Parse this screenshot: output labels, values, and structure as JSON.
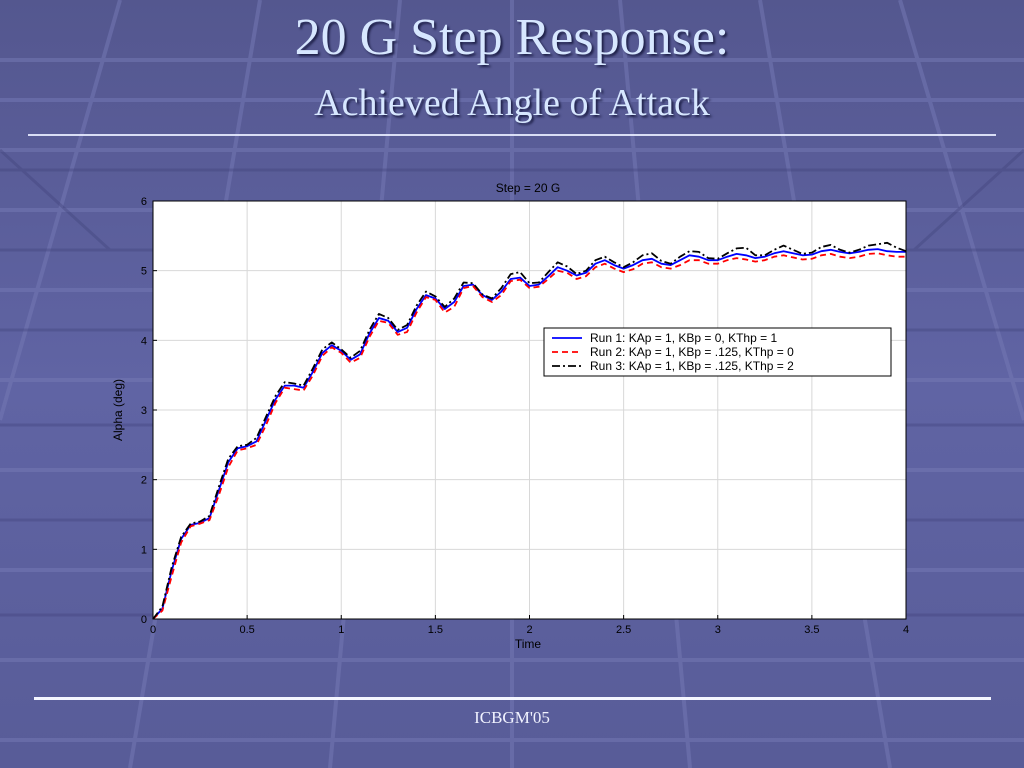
{
  "slide": {
    "title": "20 G Step Response:",
    "subtitle": "Achieved Angle of Attack",
    "footer": "ICBGM'05"
  },
  "chart_data": {
    "type": "line",
    "title": "Step = 20 G",
    "xlabel": "Time",
    "ylabel": "Alpha (deg)",
    "xlim": [
      0,
      4
    ],
    "ylim": [
      0,
      6
    ],
    "xticks": [
      "0",
      "0.5",
      "1",
      "1.5",
      "2",
      "2.5",
      "3",
      "3.5",
      "4"
    ],
    "yticks": [
      "0",
      "1",
      "2",
      "3",
      "4",
      "5",
      "6"
    ],
    "grid": true,
    "legend_position": "center-right",
    "series": [
      {
        "name": "Run 1: KAp = 1, KBp = 0, KThp = 1",
        "color": "#0000ff",
        "dash": "solid",
        "points": [
          [
            0,
            0
          ],
          [
            0.05,
            0.15
          ],
          [
            0.1,
            0.7
          ],
          [
            0.15,
            1.15
          ],
          [
            0.2,
            1.35
          ],
          [
            0.25,
            1.38
          ],
          [
            0.3,
            1.45
          ],
          [
            0.35,
            1.85
          ],
          [
            0.4,
            2.25
          ],
          [
            0.45,
            2.45
          ],
          [
            0.5,
            2.48
          ],
          [
            0.55,
            2.55
          ],
          [
            0.6,
            2.85
          ],
          [
            0.65,
            3.15
          ],
          [
            0.7,
            3.35
          ],
          [
            0.75,
            3.35
          ],
          [
            0.8,
            3.32
          ],
          [
            0.85,
            3.55
          ],
          [
            0.9,
            3.82
          ],
          [
            0.95,
            3.93
          ],
          [
            1.0,
            3.85
          ],
          [
            1.05,
            3.72
          ],
          [
            1.1,
            3.8
          ],
          [
            1.15,
            4.1
          ],
          [
            1.2,
            4.32
          ],
          [
            1.25,
            4.28
          ],
          [
            1.3,
            4.12
          ],
          [
            1.35,
            4.18
          ],
          [
            1.4,
            4.45
          ],
          [
            1.45,
            4.65
          ],
          [
            1.5,
            4.6
          ],
          [
            1.55,
            4.45
          ],
          [
            1.6,
            4.55
          ],
          [
            1.65,
            4.78
          ],
          [
            1.7,
            4.8
          ],
          [
            1.75,
            4.65
          ],
          [
            1.8,
            4.58
          ],
          [
            1.85,
            4.7
          ],
          [
            1.9,
            4.88
          ],
          [
            1.95,
            4.9
          ],
          [
            2.0,
            4.78
          ],
          [
            2.05,
            4.8
          ],
          [
            2.1,
            4.92
          ],
          [
            2.15,
            5.05
          ],
          [
            2.2,
            5.0
          ],
          [
            2.25,
            4.93
          ],
          [
            2.3,
            4.97
          ],
          [
            2.35,
            5.1
          ],
          [
            2.4,
            5.15
          ],
          [
            2.45,
            5.08
          ],
          [
            2.5,
            5.03
          ],
          [
            2.55,
            5.08
          ],
          [
            2.6,
            5.15
          ],
          [
            2.65,
            5.17
          ],
          [
            2.7,
            5.1
          ],
          [
            2.75,
            5.08
          ],
          [
            2.8,
            5.15
          ],
          [
            2.85,
            5.22
          ],
          [
            2.9,
            5.2
          ],
          [
            2.95,
            5.15
          ],
          [
            3.0,
            5.15
          ],
          [
            3.05,
            5.2
          ],
          [
            3.1,
            5.24
          ],
          [
            3.15,
            5.22
          ],
          [
            3.2,
            5.18
          ],
          [
            3.25,
            5.2
          ],
          [
            3.3,
            5.25
          ],
          [
            3.35,
            5.28
          ],
          [
            3.4,
            5.25
          ],
          [
            3.45,
            5.22
          ],
          [
            3.5,
            5.23
          ],
          [
            3.55,
            5.28
          ],
          [
            3.6,
            5.3
          ],
          [
            3.65,
            5.27
          ],
          [
            3.7,
            5.25
          ],
          [
            3.75,
            5.27
          ],
          [
            3.8,
            5.3
          ],
          [
            3.85,
            5.31
          ],
          [
            3.9,
            5.28
          ],
          [
            3.95,
            5.27
          ],
          [
            4.0,
            5.27
          ]
        ]
      },
      {
        "name": "Run 2: KAp = 1, KBp = .125, KThp = 0",
        "color": "#ff0000",
        "dash": "6,4",
        "points": [
          [
            0,
            0
          ],
          [
            0.05,
            0.12
          ],
          [
            0.1,
            0.62
          ],
          [
            0.15,
            1.1
          ],
          [
            0.2,
            1.33
          ],
          [
            0.25,
            1.37
          ],
          [
            0.3,
            1.42
          ],
          [
            0.35,
            1.78
          ],
          [
            0.4,
            2.18
          ],
          [
            0.45,
            2.42
          ],
          [
            0.5,
            2.45
          ],
          [
            0.55,
            2.5
          ],
          [
            0.6,
            2.78
          ],
          [
            0.65,
            3.1
          ],
          [
            0.7,
            3.32
          ],
          [
            0.75,
            3.3
          ],
          [
            0.8,
            3.28
          ],
          [
            0.85,
            3.5
          ],
          [
            0.9,
            3.78
          ],
          [
            0.95,
            3.9
          ],
          [
            1.0,
            3.82
          ],
          [
            1.05,
            3.68
          ],
          [
            1.1,
            3.75
          ],
          [
            1.15,
            4.05
          ],
          [
            1.2,
            4.28
          ],
          [
            1.25,
            4.25
          ],
          [
            1.3,
            4.08
          ],
          [
            1.35,
            4.12
          ],
          [
            1.4,
            4.4
          ],
          [
            1.45,
            4.62
          ],
          [
            1.5,
            4.58
          ],
          [
            1.55,
            4.4
          ],
          [
            1.6,
            4.48
          ],
          [
            1.65,
            4.75
          ],
          [
            1.7,
            4.78
          ],
          [
            1.75,
            4.62
          ],
          [
            1.8,
            4.55
          ],
          [
            1.85,
            4.65
          ],
          [
            1.9,
            4.85
          ],
          [
            1.95,
            4.87
          ],
          [
            2.0,
            4.75
          ],
          [
            2.05,
            4.77
          ],
          [
            2.1,
            4.88
          ],
          [
            2.15,
            5.0
          ],
          [
            2.2,
            4.97
          ],
          [
            2.25,
            4.88
          ],
          [
            2.3,
            4.92
          ],
          [
            2.35,
            5.05
          ],
          [
            2.4,
            5.1
          ],
          [
            2.45,
            5.03
          ],
          [
            2.5,
            4.98
          ],
          [
            2.55,
            5.02
          ],
          [
            2.6,
            5.1
          ],
          [
            2.65,
            5.12
          ],
          [
            2.7,
            5.05
          ],
          [
            2.75,
            5.03
          ],
          [
            2.8,
            5.08
          ],
          [
            2.85,
            5.15
          ],
          [
            2.9,
            5.15
          ],
          [
            2.95,
            5.1
          ],
          [
            3.0,
            5.1
          ],
          [
            3.05,
            5.15
          ],
          [
            3.1,
            5.18
          ],
          [
            3.15,
            5.16
          ],
          [
            3.2,
            5.13
          ],
          [
            3.25,
            5.15
          ],
          [
            3.3,
            5.2
          ],
          [
            3.35,
            5.22
          ],
          [
            3.4,
            5.19
          ],
          [
            3.45,
            5.16
          ],
          [
            3.5,
            5.17
          ],
          [
            3.55,
            5.22
          ],
          [
            3.6,
            5.24
          ],
          [
            3.65,
            5.2
          ],
          [
            3.7,
            5.18
          ],
          [
            3.75,
            5.2
          ],
          [
            3.8,
            5.24
          ],
          [
            3.85,
            5.25
          ],
          [
            3.9,
            5.22
          ],
          [
            3.95,
            5.2
          ],
          [
            4.0,
            5.2
          ]
        ]
      },
      {
        "name": "Run 3: KAp = 1, KBp = .125, KThp = 2",
        "color": "#000000",
        "dash": "8,3,2,3",
        "points": [
          [
            0,
            0
          ],
          [
            0.05,
            0.18
          ],
          [
            0.1,
            0.75
          ],
          [
            0.15,
            1.18
          ],
          [
            0.2,
            1.37
          ],
          [
            0.25,
            1.4
          ],
          [
            0.3,
            1.48
          ],
          [
            0.35,
            1.9
          ],
          [
            0.4,
            2.3
          ],
          [
            0.45,
            2.48
          ],
          [
            0.5,
            2.5
          ],
          [
            0.55,
            2.6
          ],
          [
            0.6,
            2.9
          ],
          [
            0.65,
            3.2
          ],
          [
            0.7,
            3.4
          ],
          [
            0.75,
            3.38
          ],
          [
            0.8,
            3.35
          ],
          [
            0.85,
            3.6
          ],
          [
            0.9,
            3.87
          ],
          [
            0.95,
            3.97
          ],
          [
            1.0,
            3.87
          ],
          [
            1.05,
            3.75
          ],
          [
            1.1,
            3.85
          ],
          [
            1.15,
            4.15
          ],
          [
            1.2,
            4.38
          ],
          [
            1.25,
            4.32
          ],
          [
            1.3,
            4.15
          ],
          [
            1.35,
            4.22
          ],
          [
            1.4,
            4.5
          ],
          [
            1.45,
            4.7
          ],
          [
            1.5,
            4.63
          ],
          [
            1.55,
            4.48
          ],
          [
            1.6,
            4.6
          ],
          [
            1.65,
            4.83
          ],
          [
            1.7,
            4.82
          ],
          [
            1.75,
            4.66
          ],
          [
            1.8,
            4.6
          ],
          [
            1.85,
            4.75
          ],
          [
            1.9,
            4.95
          ],
          [
            1.95,
            4.98
          ],
          [
            2.0,
            4.82
          ],
          [
            2.05,
            4.83
          ],
          [
            2.1,
            4.98
          ],
          [
            2.15,
            5.12
          ],
          [
            2.2,
            5.06
          ],
          [
            2.25,
            4.95
          ],
          [
            2.3,
            5.0
          ],
          [
            2.35,
            5.15
          ],
          [
            2.4,
            5.2
          ],
          [
            2.45,
            5.12
          ],
          [
            2.5,
            5.05
          ],
          [
            2.55,
            5.12
          ],
          [
            2.6,
            5.22
          ],
          [
            2.65,
            5.25
          ],
          [
            2.7,
            5.14
          ],
          [
            2.75,
            5.1
          ],
          [
            2.8,
            5.2
          ],
          [
            2.85,
            5.28
          ],
          [
            2.9,
            5.27
          ],
          [
            2.95,
            5.18
          ],
          [
            3.0,
            5.17
          ],
          [
            3.05,
            5.25
          ],
          [
            3.1,
            5.32
          ],
          [
            3.15,
            5.33
          ],
          [
            3.2,
            5.22
          ],
          [
            3.25,
            5.22
          ],
          [
            3.3,
            5.3
          ],
          [
            3.35,
            5.36
          ],
          [
            3.4,
            5.3
          ],
          [
            3.45,
            5.24
          ],
          [
            3.5,
            5.26
          ],
          [
            3.55,
            5.34
          ],
          [
            3.6,
            5.37
          ],
          [
            3.65,
            5.3
          ],
          [
            3.7,
            5.26
          ],
          [
            3.75,
            5.3
          ],
          [
            3.8,
            5.36
          ],
          [
            3.85,
            5.38
          ],
          [
            3.9,
            5.4
          ],
          [
            3.95,
            5.33
          ],
          [
            4.0,
            5.28
          ]
        ]
      }
    ]
  }
}
